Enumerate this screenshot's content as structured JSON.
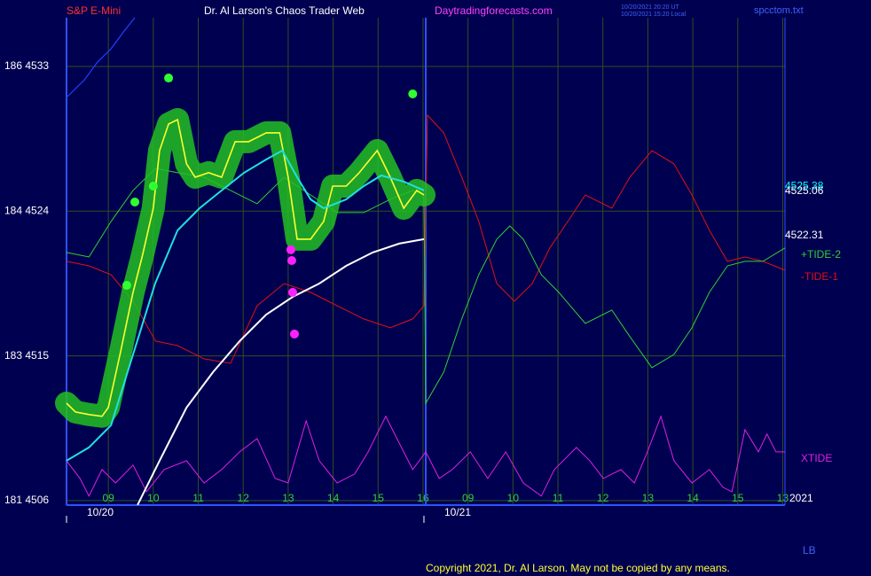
{
  "chart_data": {
    "type": "line",
    "symbol": "S&P E-Mini",
    "title": "Dr. Al Larson's Chaos Trader Web",
    "site": "Daytradingforecasts.com",
    "timestamp_ut": "10/20/2021 20:20 UT",
    "timestamp_local": "10/20/2021 15:20 Local",
    "file": "spcctom.txt",
    "year_label": "2021",
    "corner_label": "LB",
    "copyright": "Copyright 2021, Dr. Al Larson. May not be copied by any means.",
    "background": "#000050",
    "grid": true,
    "grid_color": "#2f4f1f",
    "axis_color": "#3050ff",
    "now_x": 7.06,
    "xlim": [
      -0.93,
      15.05
    ],
    "ylim": [
      4505.72,
      4536.03
    ],
    "xticks": [
      {
        "value": 0,
        "label": "09"
      },
      {
        "value": 1,
        "label": "10"
      },
      {
        "value": 2,
        "label": "11"
      },
      {
        "value": 3,
        "label": "12"
      },
      {
        "value": 4,
        "label": "13"
      },
      {
        "value": 5,
        "label": "14"
      },
      {
        "value": 6,
        "label": "15"
      },
      {
        "value": 7,
        "label": "16"
      },
      {
        "value": 8,
        "label": "09"
      },
      {
        "value": 9,
        "label": "10"
      },
      {
        "value": 10,
        "label": "11"
      },
      {
        "value": 11,
        "label": "12"
      },
      {
        "value": 12,
        "label": "13"
      },
      {
        "value": 13,
        "label": "14"
      },
      {
        "value": 14,
        "label": "15"
      },
      {
        "value": 15,
        "label": "13"
      }
    ],
    "date_ticks": [
      {
        "value": -0.93,
        "label": "10/20"
      },
      {
        "value": 7.02,
        "label": "10/21"
      }
    ],
    "yticks": [
      {
        "value": 4533,
        "label": "186  4533"
      },
      {
        "value": 4524,
        "label": "184  4524"
      },
      {
        "value": 4515,
        "label": "183  4515"
      },
      {
        "value": 4506,
        "label": "181  4506"
      }
    ],
    "price_labels": [
      {
        "value": 4525.38,
        "color": "#00ffff"
      },
      {
        "value": 4525.06,
        "color": "#ffffff"
      },
      {
        "value": 4522.31,
        "color": "#ffffff"
      }
    ],
    "series": [
      {
        "color": "#2040ff",
        "width": 1.2,
        "x": [
          -0.93,
          -0.53,
          -0.24,
          0.06,
          0.35,
          0.59
        ],
        "values": [
          4531.07,
          4532.17,
          4533.28,
          4534.1,
          4535.2,
          4536.03
        ]
      },
      {
        "name": "-TIDE-1",
        "color": "#e01010",
        "width": 1,
        "x": [
          -0.93,
          -0.43,
          0.06,
          0.55,
          1.05,
          1.54,
          2.13,
          2.72,
          3.31,
          3.91,
          4.5,
          5.09,
          5.68,
          6.27,
          6.77,
          7.02,
          7.1,
          7.46,
          7.86,
          8.24,
          8.64,
          9.03,
          9.43,
          9.82,
          10.22,
          10.61,
          11.2,
          11.6,
          12.09,
          12.58,
          12.98,
          13.37,
          13.77,
          14.16,
          14.56,
          15.05
        ],
        "values": [
          4520.88,
          4520.6,
          4520.05,
          4518.4,
          4515.92,
          4515.64,
          4514.82,
          4514.54,
          4518.12,
          4519.5,
          4518.95,
          4518.12,
          4517.3,
          4516.75,
          4517.3,
          4518.12,
          4529.97,
          4528.87,
          4526.11,
          4523.36,
          4519.5,
          4518.4,
          4519.5,
          4521.71,
          4523.36,
          4525.01,
          4524.18,
          4526.11,
          4527.77,
          4526.94,
          4525.01,
          4522.81,
          4520.88,
          4521.15,
          4520.88,
          4520.33
        ]
      },
      {
        "name": "+TIDE-2",
        "color": "#30d030",
        "width": 1,
        "x": [
          -0.93,
          -0.43,
          0.06,
          0.55,
          1.05,
          1.54,
          2.13,
          2.72,
          3.31,
          3.91,
          4.5,
          5.09,
          5.68,
          6.27,
          6.77,
          7.02,
          7.06,
          7.46,
          7.86,
          8.24,
          8.64,
          8.93,
          9.23,
          9.63,
          10.02,
          10.61,
          11.2,
          11.6,
          12.09,
          12.58,
          12.98,
          13.37,
          13.77,
          14.16,
          14.56,
          15.05
        ],
        "values": [
          4521.43,
          4521.15,
          4523.36,
          4525.29,
          4526.66,
          4526.39,
          4526.11,
          4525.29,
          4524.46,
          4526.11,
          4525.01,
          4523.91,
          4523.91,
          4524.74,
          4525.29,
          4525.01,
          4512.06,
          4513.99,
          4517.3,
          4520.05,
          4522.26,
          4523.08,
          4522.26,
          4520.05,
          4518.95,
          4517.02,
          4517.85,
          4516.2,
          4514.27,
          4515.09,
          4516.75,
          4518.95,
          4520.6,
          4520.88,
          4520.88,
          4521.71
        ]
      },
      {
        "name": "XTIDE",
        "color": "#e020e0",
        "width": 1,
        "x": [
          -0.93,
          -0.63,
          -0.43,
          -0.14,
          0.16,
          0.55,
          0.85,
          1.24,
          1.74,
          2.13,
          2.52,
          2.92,
          3.31,
          3.71,
          4.0,
          4.4,
          4.69,
          5.09,
          5.48,
          5.78,
          6.17,
          6.47,
          6.77,
          7.06,
          7.36,
          7.65,
          8.05,
          8.44,
          8.84,
          9.23,
          9.63,
          9.92,
          10.41,
          10.71,
          11.01,
          11.4,
          11.7,
          11.99,
          12.29,
          12.58,
          12.98,
          13.37,
          13.67,
          13.87,
          14.16,
          14.46,
          14.65,
          14.85,
          15.05
        ],
        "values": [
          4508.48,
          4507.38,
          4506.28,
          4507.93,
          4507.1,
          4508.21,
          4506.55,
          4507.93,
          4508.48,
          4507.1,
          4507.93,
          4509.03,
          4509.86,
          4507.38,
          4507.1,
          4510.96,
          4508.48,
          4507.1,
          4507.66,
          4509.03,
          4511.24,
          4509.58,
          4507.93,
          4509.03,
          4507.38,
          4507.93,
          4509.03,
          4507.38,
          4509.03,
          4507.1,
          4506.28,
          4507.93,
          4509.31,
          4508.48,
          4507.38,
          4507.93,
          4507.1,
          4509.03,
          4511.24,
          4508.48,
          4507.1,
          4507.93,
          4506.83,
          4506.55,
          4510.41,
          4509.03,
          4510.14,
          4509.03,
          4509.03
        ]
      },
      {
        "color": "#ffffff",
        "width": 2,
        "x": [
          0.65,
          1.14,
          1.74,
          2.33,
          2.92,
          3.51,
          4.1,
          4.69,
          5.29,
          5.88,
          6.47,
          7.02
        ],
        "values": [
          4505.73,
          4508.48,
          4511.79,
          4513.99,
          4515.92,
          4517.57,
          4518.67,
          4519.5,
          4520.6,
          4521.43,
          4521.98,
          4522.26
        ]
      },
      {
        "color": "#ffff30",
        "width": 1.6,
        "halo": "#22c022",
        "x": [
          -0.93,
          -0.73,
          -0.43,
          -0.14,
          0,
          0.26,
          0.55,
          0.75,
          1,
          1.14,
          1.34,
          1.54,
          1.74,
          1.93,
          2.23,
          2.52,
          2.82,
          3.12,
          3.51,
          3.81,
          4,
          4.2,
          4.5,
          4.79,
          4.99,
          5.29,
          5.58,
          5.98,
          6.27,
          6.57,
          6.86,
          7.02
        ],
        "values": [
          4512.06,
          4511.51,
          4511.35,
          4511.24,
          4511.79,
          4515.09,
          4518.95,
          4521.15,
          4524.18,
          4527.77,
          4529.42,
          4529.69,
          4526.94,
          4526.11,
          4526.39,
          4526.11,
          4528.32,
          4528.32,
          4528.87,
          4528.87,
          4526.11,
          4522.26,
          4522.26,
          4523.36,
          4525.56,
          4525.56,
          4526.39,
          4527.77,
          4526.11,
          4524.18,
          4525.29,
          4525.01
        ]
      },
      {
        "color": "#20e0e0",
        "width": 2,
        "x": [
          -0.93,
          -0.43,
          0.06,
          0.55,
          1.04,
          1.54,
          2.03,
          2.52,
          3.02,
          3.51,
          3.87,
          4.2,
          4.5,
          4.79,
          5.29,
          5.68,
          6.07,
          6.57,
          7.02
        ],
        "values": [
          4508.48,
          4509.31,
          4510.69,
          4515.09,
          4519.5,
          4522.81,
          4524.18,
          4525.29,
          4526.39,
          4527.21,
          4527.77,
          4526.11,
          4524.73,
          4524.18,
          4524.73,
          4525.56,
          4526.22,
          4525.84,
          4525.29
        ]
      },
      {
        "color": "#30ff30",
        "marker": true,
        "x": [
          1.34,
          6.77,
          1,
          0.59,
          0.41
        ],
        "values": [
          4532.28,
          4531.29,
          4525.56,
          4524.57,
          4519.39
        ]
      },
      {
        "color": "#ff20ff",
        "marker": true,
        "x": [
          4.14,
          4.1,
          4.08,
          4.06
        ],
        "values": [
          4516.36,
          4518.95,
          4520.93,
          4521.6
        ]
      }
    ]
  }
}
